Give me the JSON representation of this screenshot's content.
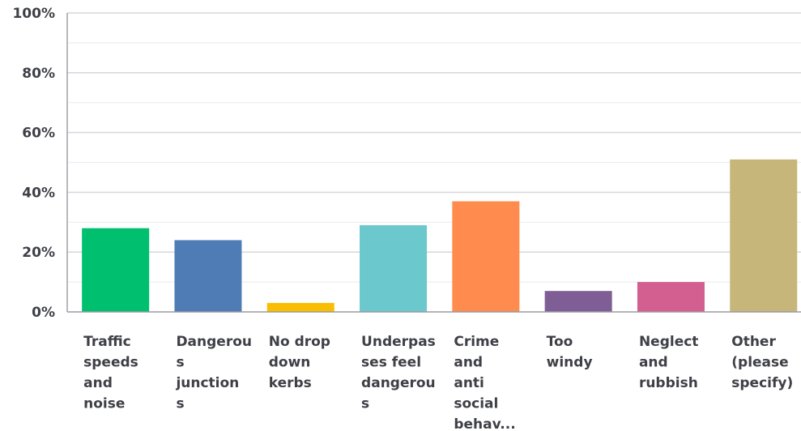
{
  "chart_data": {
    "type": "bar",
    "title": "",
    "xlabel": "",
    "ylabel": "",
    "ylim": [
      0,
      100
    ],
    "y_ticks": [
      "0%",
      "20%",
      "40%",
      "60%",
      "80%",
      "100%"
    ],
    "y_tick_values": [
      0,
      20,
      40,
      60,
      80,
      100
    ],
    "grid": true,
    "legend": "none",
    "categories": [
      "Traffic speeds and noise",
      "Dangerous junctions",
      "No drop down kerbs",
      "Underpasses feel dangerous",
      "Crime and anti social behav...",
      "Too windy",
      "Neglect and rubbish",
      "Other (please specify)"
    ],
    "category_label_lines": [
      [
        "Traffic",
        "speeds",
        "and",
        "noise"
      ],
      [
        "Dangerou",
        "s",
        "junction",
        "s"
      ],
      [
        "No drop",
        "down",
        "kerbs"
      ],
      [
        "Underpas",
        "ses feel",
        "dangerou",
        "s"
      ],
      [
        "Crime",
        "and",
        "anti",
        "social",
        "behav..."
      ],
      [
        "Too",
        "windy"
      ],
      [
        "Neglect",
        "and",
        "rubbish"
      ],
      [
        "Other",
        "(please",
        "specify)"
      ]
    ],
    "values": [
      28,
      24,
      3,
      29,
      37,
      7,
      10,
      51
    ],
    "colors": [
      "#00bf6f",
      "#507cb6",
      "#f9be00",
      "#6bc8cd",
      "#ff8b4f",
      "#7f5e96",
      "#d25f90",
      "#c6b679"
    ]
  }
}
